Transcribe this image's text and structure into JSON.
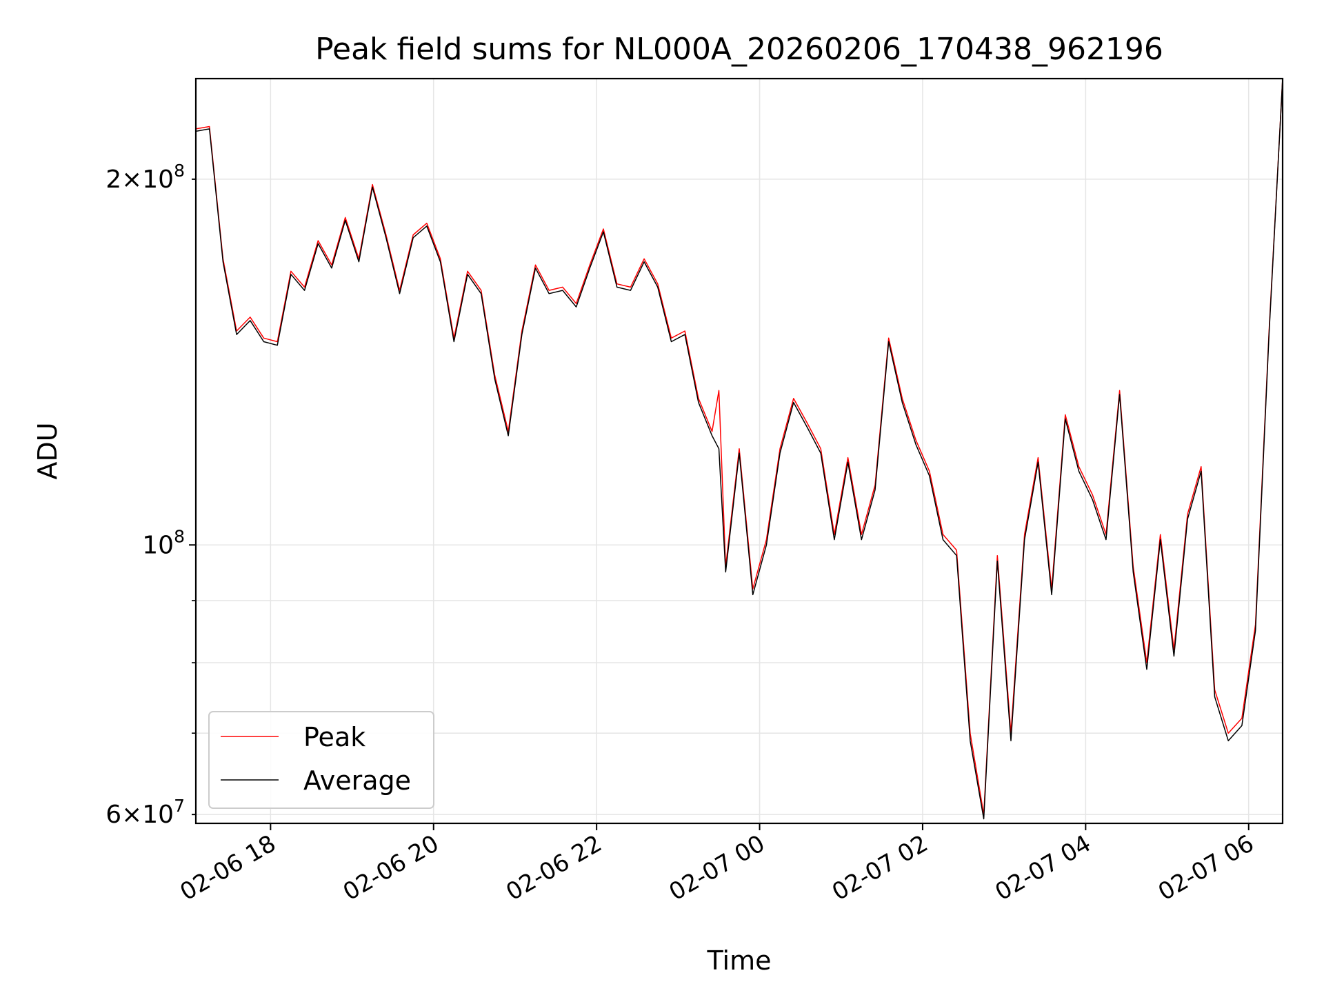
{
  "chart_data": {
    "type": "line",
    "title": "Peak field sums for NL000A_20260206_170438_962196",
    "xlabel": "Time",
    "ylabel": "ADU",
    "x_start": "2026-02-06 17:05",
    "x_end": "2026-02-07 06:25",
    "xlim": [
      "2026-02-06 17:05",
      "2026-02-07 06:25"
    ],
    "x_ticks": [
      {
        "label": "02-06 18",
        "value": "2026-02-06 18:00"
      },
      {
        "label": "02-06 20",
        "value": "2026-02-06 20:00"
      },
      {
        "label": "02-06 22",
        "value": "2026-02-06 22:00"
      },
      {
        "label": "02-07 00",
        "value": "2026-02-07 00:00"
      },
      {
        "label": "02-07 02",
        "value": "2026-02-07 02:00"
      },
      {
        "label": "02-07 04",
        "value": "2026-02-07 04:00"
      },
      {
        "label": "02-07 06",
        "value": "2026-02-07 06:00"
      }
    ],
    "y_scale": "log",
    "ylim": [
      59000000,
      242000000
    ],
    "y_ticks": [
      {
        "value": 60000000,
        "mantissa": "6",
        "exp": "7",
        "minor": true
      },
      {
        "value": 100000000,
        "mantissa": "",
        "exp": "8",
        "minor": false
      },
      {
        "value": 200000000,
        "mantissa": "2",
        "exp": "8",
        "minor": true
      }
    ],
    "y_minor_gridlines": [
      70000000,
      80000000,
      90000000
    ],
    "grid": true,
    "legend_position": "lower-left",
    "series": [
      {
        "name": "Peak",
        "color": "#ff0000",
        "x": [
          "2026-02-06 17:05",
          "2026-02-06 17:15",
          "2026-02-06 17:25",
          "2026-02-06 17:35",
          "2026-02-06 17:45",
          "2026-02-06 17:55",
          "2026-02-06 18:05",
          "2026-02-06 18:15",
          "2026-02-06 18:25",
          "2026-02-06 18:35",
          "2026-02-06 18:45",
          "2026-02-06 18:55",
          "2026-02-06 19:05",
          "2026-02-06 19:15",
          "2026-02-06 19:25",
          "2026-02-06 19:35",
          "2026-02-06 19:45",
          "2026-02-06 19:55",
          "2026-02-06 20:05",
          "2026-02-06 20:15",
          "2026-02-06 20:25",
          "2026-02-06 20:35",
          "2026-02-06 20:45",
          "2026-02-06 20:55",
          "2026-02-06 21:05",
          "2026-02-06 21:15",
          "2026-02-06 21:25",
          "2026-02-06 21:35",
          "2026-02-06 21:45",
          "2026-02-06 21:55",
          "2026-02-06 22:05",
          "2026-02-06 22:15",
          "2026-02-06 22:25",
          "2026-02-06 22:35",
          "2026-02-06 22:45",
          "2026-02-06 22:55",
          "2026-02-06 23:05",
          "2026-02-06 23:15",
          "2026-02-06 23:25",
          "2026-02-06 23:30",
          "2026-02-06 23:35",
          "2026-02-06 23:45",
          "2026-02-06 23:55",
          "2026-02-07 00:05",
          "2026-02-07 00:15",
          "2026-02-07 00:25",
          "2026-02-07 00:35",
          "2026-02-07 00:45",
          "2026-02-07 00:55",
          "2026-02-07 01:05",
          "2026-02-07 01:15",
          "2026-02-07 01:25",
          "2026-02-07 01:35",
          "2026-02-07 01:45",
          "2026-02-07 01:55",
          "2026-02-07 02:05",
          "2026-02-07 02:15",
          "2026-02-07 02:25",
          "2026-02-07 02:35",
          "2026-02-07 02:45",
          "2026-02-07 02:55",
          "2026-02-07 03:05",
          "2026-02-07 03:15",
          "2026-02-07 03:25",
          "2026-02-07 03:35",
          "2026-02-07 03:45",
          "2026-02-07 03:55",
          "2026-02-07 04:05",
          "2026-02-07 04:15",
          "2026-02-07 04:25",
          "2026-02-07 04:35",
          "2026-02-07 04:45",
          "2026-02-07 04:55",
          "2026-02-07 05:05",
          "2026-02-07 05:15",
          "2026-02-07 05:25",
          "2026-02-07 05:35",
          "2026-02-07 05:45",
          "2026-02-07 05:55",
          "2026-02-07 06:05",
          "2026-02-07 06:15",
          "2026-02-07 06:25"
        ],
        "values": [
          220000000,
          221000000,
          172000000,
          150000000,
          154000000,
          148000000,
          147000000,
          168000000,
          163000000,
          178000000,
          170000000,
          186000000,
          172000000,
          198000000,
          180000000,
          162000000,
          180000000,
          184000000,
          172000000,
          148000000,
          168000000,
          162000000,
          138000000,
          124000000,
          150000000,
          170000000,
          162000000,
          163000000,
          158000000,
          170000000,
          182000000,
          164000000,
          163000000,
          172000000,
          164000000,
          148000000,
          150000000,
          132000000,
          124000000,
          134000000,
          96000000,
          120000000,
          92000000,
          101000000,
          120000000,
          132000000,
          126000000,
          120000000,
          102000000,
          118000000,
          102000000,
          112000000,
          148000000,
          132000000,
          122000000,
          115000000,
          102000000,
          99000000,
          70000000,
          60000000,
          98000000,
          70000000,
          102000000,
          118000000,
          92000000,
          128000000,
          116000000,
          110000000,
          102000000,
          134000000,
          96000000,
          80000000,
          102000000,
          82000000,
          106000000,
          116000000,
          76000000,
          70000000,
          72000000,
          86000000,
          150000000,
          242000000
        ]
      },
      {
        "name": "Average",
        "color": "#000000",
        "x": [
          "2026-02-06 17:05",
          "2026-02-06 17:15",
          "2026-02-06 17:25",
          "2026-02-06 17:35",
          "2026-02-06 17:45",
          "2026-02-06 17:55",
          "2026-02-06 18:05",
          "2026-02-06 18:15",
          "2026-02-06 18:25",
          "2026-02-06 18:35",
          "2026-02-06 18:45",
          "2026-02-06 18:55",
          "2026-02-06 19:05",
          "2026-02-06 19:15",
          "2026-02-06 19:25",
          "2026-02-06 19:35",
          "2026-02-06 19:45",
          "2026-02-06 19:55",
          "2026-02-06 20:05",
          "2026-02-06 20:15",
          "2026-02-06 20:25",
          "2026-02-06 20:35",
          "2026-02-06 20:45",
          "2026-02-06 20:55",
          "2026-02-06 21:05",
          "2026-02-06 21:15",
          "2026-02-06 21:25",
          "2026-02-06 21:35",
          "2026-02-06 21:45",
          "2026-02-06 21:55",
          "2026-02-06 22:05",
          "2026-02-06 22:15",
          "2026-02-06 22:25",
          "2026-02-06 22:35",
          "2026-02-06 22:45",
          "2026-02-06 22:55",
          "2026-02-06 23:05",
          "2026-02-06 23:15",
          "2026-02-06 23:25",
          "2026-02-06 23:30",
          "2026-02-06 23:35",
          "2026-02-06 23:45",
          "2026-02-06 23:55",
          "2026-02-07 00:05",
          "2026-02-07 00:15",
          "2026-02-07 00:25",
          "2026-02-07 00:35",
          "2026-02-07 00:45",
          "2026-02-07 00:55",
          "2026-02-07 01:05",
          "2026-02-07 01:15",
          "2026-02-07 01:25",
          "2026-02-07 01:35",
          "2026-02-07 01:45",
          "2026-02-07 01:55",
          "2026-02-07 02:05",
          "2026-02-07 02:15",
          "2026-02-07 02:25",
          "2026-02-07 02:35",
          "2026-02-07 02:45",
          "2026-02-07 02:55",
          "2026-02-07 03:05",
          "2026-02-07 03:15",
          "2026-02-07 03:25",
          "2026-02-07 03:35",
          "2026-02-07 03:45",
          "2026-02-07 03:55",
          "2026-02-07 04:05",
          "2026-02-07 04:15",
          "2026-02-07 04:25",
          "2026-02-07 04:35",
          "2026-02-07 04:45",
          "2026-02-07 04:55",
          "2026-02-07 05:05",
          "2026-02-07 05:15",
          "2026-02-07 05:25",
          "2026-02-07 05:35",
          "2026-02-07 05:45",
          "2026-02-07 05:55",
          "2026-02-07 06:05",
          "2026-02-07 06:15",
          "2026-02-07 06:25"
        ],
        "values": [
          219000000,
          220000000,
          171000000,
          149000000,
          153000000,
          147000000,
          146000000,
          167000000,
          162000000,
          177000000,
          169000000,
          185000000,
          171000000,
          197000000,
          179000000,
          161000000,
          179000000,
          183000000,
          171000000,
          147000000,
          167000000,
          161000000,
          137000000,
          123000000,
          149000000,
          169000000,
          161000000,
          162000000,
          157000000,
          169000000,
          181000000,
          163000000,
          162000000,
          171000000,
          163000000,
          147000000,
          149000000,
          131000000,
          123000000,
          120000000,
          95000000,
          119000000,
          91000000,
          100000000,
          119000000,
          131000000,
          125000000,
          119000000,
          101000000,
          117000000,
          101000000,
          111000000,
          147000000,
          131000000,
          121000000,
          114000000,
          101000000,
          98000000,
          69000000,
          59500000,
          97000000,
          69000000,
          101000000,
          117000000,
          91000000,
          127000000,
          115000000,
          109000000,
          101000000,
          133000000,
          95000000,
          79000000,
          101000000,
          81000000,
          105000000,
          115000000,
          75000000,
          69000000,
          71000000,
          85000000,
          149000000,
          242000000
        ]
      }
    ]
  }
}
